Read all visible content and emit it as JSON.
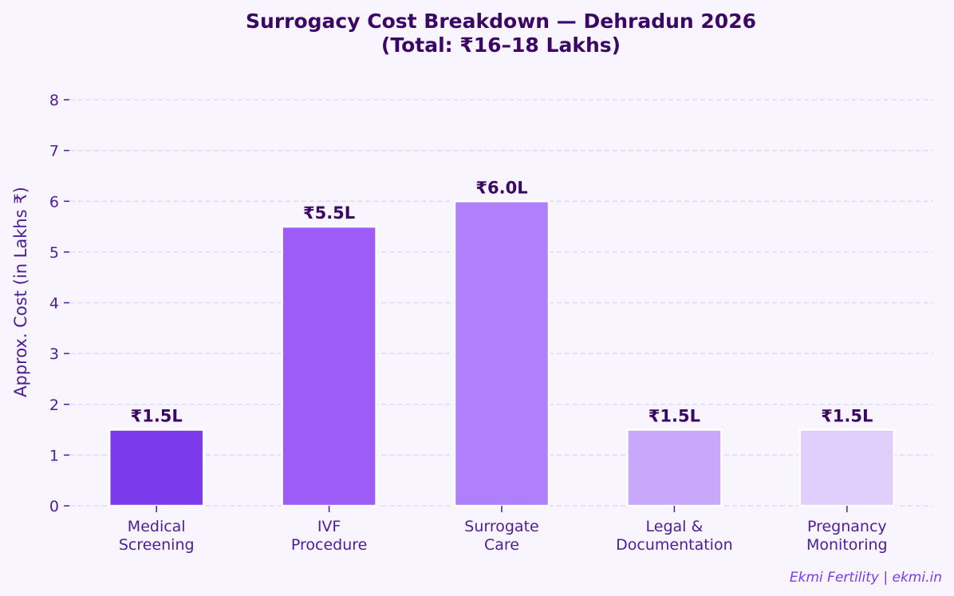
{
  "chart_data": {
    "type": "bar",
    "title_lines": [
      "Surrogacy Cost Breakdown — Dehradun 2026",
      "(Total: ₹16–18 Lakhs)"
    ],
    "xlabel": "",
    "ylabel": "Approx. Cost (in Lakhs ₹)",
    "categories": [
      [
        "Medical",
        "Screening"
      ],
      [
        "IVF",
        "Procedure"
      ],
      [
        "Surrogate",
        "Care"
      ],
      [
        "Legal &",
        "Documentation"
      ],
      [
        "Pregnancy",
        "Monitoring"
      ]
    ],
    "values": [
      1.5,
      5.5,
      6.0,
      1.5,
      1.5
    ],
    "data_labels": [
      "₹1.5L",
      "₹5.5L",
      "₹6.0L",
      "₹1.5L",
      "₹1.5L"
    ],
    "colors": [
      "#7c3aed",
      "#9d5cf6",
      "#b07ffc",
      "#c8a8fa",
      "#e0cffc"
    ],
    "ylim": [
      0,
      8
    ],
    "yticks": [
      0,
      1,
      2,
      3,
      4,
      5,
      6,
      7,
      8
    ],
    "grid": "y dashed",
    "legend": "none"
  },
  "credit": "Ekmi Fertility | ekmi.in"
}
